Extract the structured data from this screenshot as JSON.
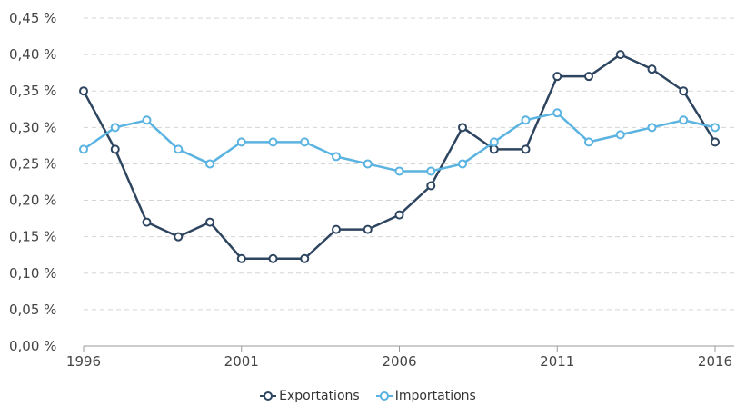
{
  "chart_data": {
    "type": "line",
    "title": "",
    "xlabel": "",
    "ylabel": "",
    "x": [
      1996,
      1997,
      1998,
      1999,
      2000,
      2001,
      2002,
      2003,
      2004,
      2005,
      2006,
      2007,
      2008,
      2009,
      2010,
      2011,
      2012,
      2013,
      2014,
      2015,
      2016
    ],
    "x_ticks": [
      "1996",
      "2001",
      "2006",
      "2011",
      "2016"
    ],
    "y_ticks": [
      "0,00 %",
      "0,05 %",
      "0,10 %",
      "0,15 %",
      "0,20 %",
      "0,25 %",
      "0,30 %",
      "0,35 %",
      "0,40 %",
      "0,45 %"
    ],
    "ylim": [
      0,
      0.45
    ],
    "xlim": [
      1996,
      2016
    ],
    "grid": "horizontal dashed",
    "legend_position": "bottom-center",
    "series": [
      {
        "name": "Exportations",
        "color": "#2e4560",
        "values": [
          0.35,
          0.27,
          0.17,
          0.15,
          0.17,
          0.12,
          0.12,
          0.12,
          0.16,
          0.16,
          0.18,
          0.22,
          0.3,
          0.27,
          0.27,
          0.37,
          0.37,
          0.4,
          0.38,
          0.35,
          0.28
        ]
      },
      {
        "name": "Importations",
        "color": "#5ab3e0",
        "values": [
          0.27,
          0.3,
          0.31,
          0.27,
          0.25,
          0.28,
          0.28,
          0.28,
          0.26,
          0.25,
          0.24,
          0.24,
          0.25,
          0.28,
          0.31,
          0.32,
          0.28,
          0.29,
          0.3,
          0.31,
          0.3
        ]
      }
    ]
  }
}
